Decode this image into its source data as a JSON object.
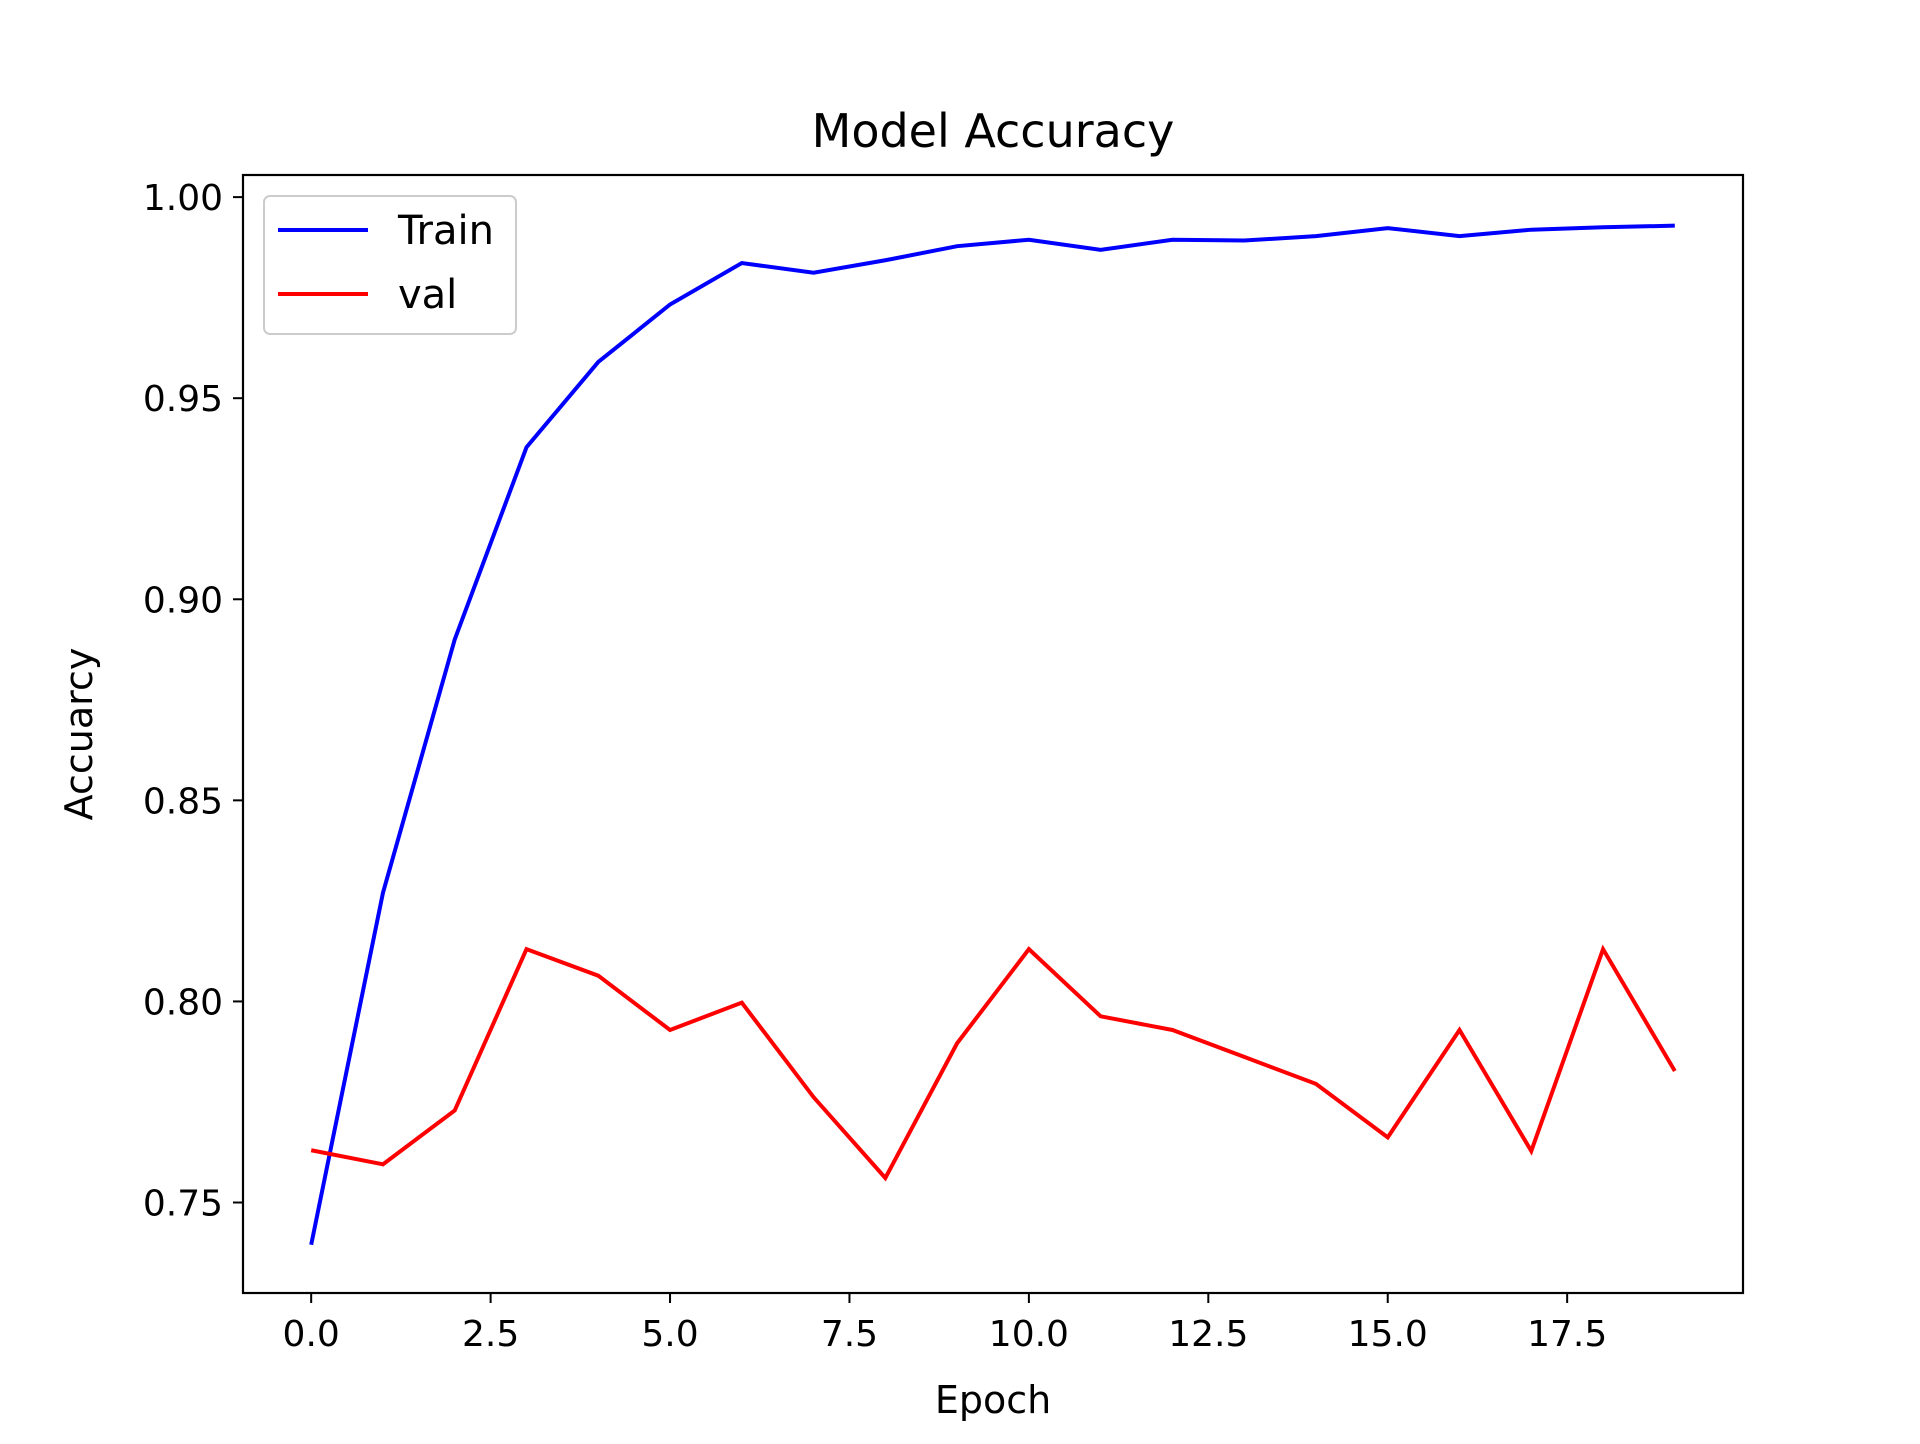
{
  "chart_data": {
    "type": "line",
    "title": "Model Accuracy",
    "xlabel": "Epoch",
    "ylabel": "Accuarcy",
    "xlim": [
      -0.95,
      19.95
    ],
    "ylim": [
      0.7275,
      1.0055
    ],
    "xticks": [
      0.0,
      2.5,
      5.0,
      7.5,
      10.0,
      12.5,
      15.0,
      17.5
    ],
    "xtick_labels": [
      "0.0",
      "2.5",
      "5.0",
      "7.5",
      "10.0",
      "12.5",
      "15.0",
      "17.5"
    ],
    "yticks": [
      0.75,
      0.8,
      0.85,
      0.9,
      0.95,
      1.0
    ],
    "ytick_labels": [
      "0.75",
      "0.80",
      "0.85",
      "0.90",
      "0.95",
      "1.00"
    ],
    "grid": false,
    "legend_position": "upper-left",
    "x": [
      0,
      1,
      2,
      3,
      4,
      5,
      6,
      7,
      8,
      9,
      10,
      11,
      12,
      13,
      14,
      15,
      16,
      17,
      18,
      19
    ],
    "series": [
      {
        "name": "Train",
        "color": "#0000ff",
        "values": [
          0.7395,
          0.827,
          0.89,
          0.9378,
          0.959,
          0.9733,
          0.9836,
          0.9812,
          0.9843,
          0.9878,
          0.9894,
          0.9869,
          0.9894,
          0.9892,
          0.9903,
          0.9923,
          0.9903,
          0.9919,
          0.9925,
          0.9929
        ]
      },
      {
        "name": "val",
        "color": "#ff0000",
        "values": [
          0.763,
          0.7595,
          0.7729,
          0.813,
          0.8064,
          0.7929,
          0.7997,
          0.7762,
          0.7561,
          0.7896,
          0.813,
          0.7963,
          0.7929,
          0.7862,
          0.7795,
          0.7662,
          0.7929,
          0.7628,
          0.813,
          0.7827
        ]
      }
    ]
  }
}
